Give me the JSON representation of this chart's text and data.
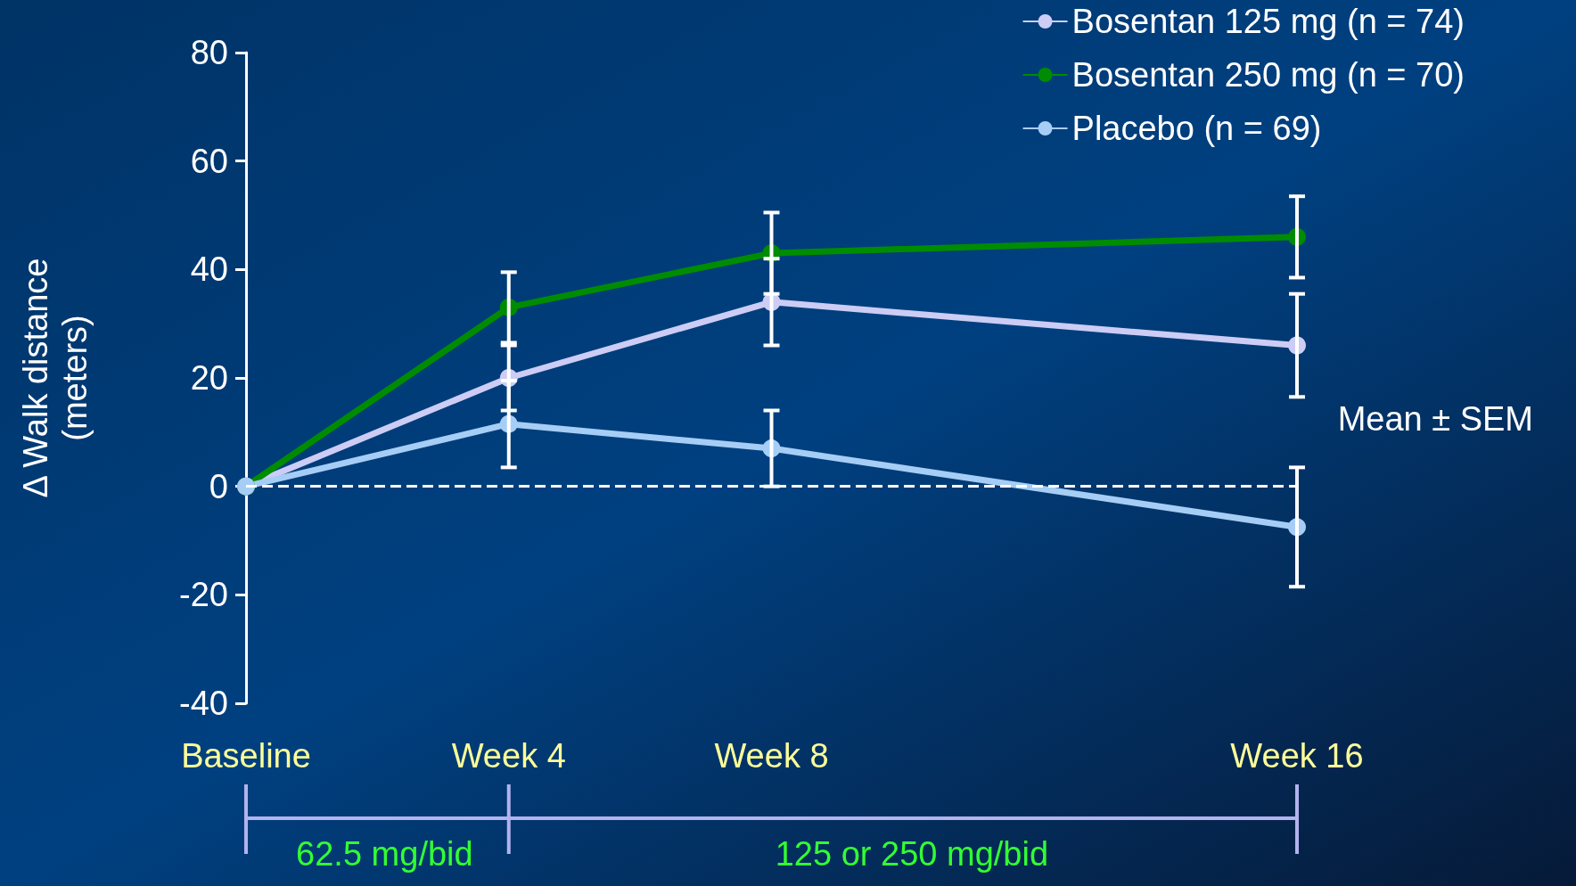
{
  "chart_data": {
    "type": "line",
    "ylabel": "Δ Walk distance\n(meters)",
    "categories": [
      "Baseline",
      "Week 4",
      "Week 8",
      null,
      "Week 16"
    ],
    "ylim": [
      -40,
      80
    ],
    "yticks": [
      -40,
      -20,
      0,
      20,
      40,
      60,
      80
    ],
    "series": [
      {
        "name": "Bosentan 125 mg (n = 74)",
        "color": "#ccccf5",
        "values": [
          0,
          20,
          34,
          null,
          26
        ],
        "errors": [
          null,
          6,
          8,
          null,
          9.5
        ]
      },
      {
        "name": "Bosentan 250 mg (n = 70)",
        "color": "#008c00",
        "values": [
          0,
          33,
          43,
          null,
          46
        ],
        "errors": [
          null,
          6.5,
          7.5,
          null,
          7.5
        ]
      },
      {
        "name": "Placebo (n = 69)",
        "color": "#a6cdf5",
        "values": [
          0,
          11.5,
          7,
          null,
          -7.5
        ],
        "errors": [
          null,
          8,
          7,
          null,
          11
        ]
      }
    ],
    "ref_lines": [
      {
        "axis": "y",
        "value": 0,
        "color": "#ffffff",
        "line_style": "dashed"
      }
    ],
    "annotations": [
      "Mean ± SEM",
      "62.5 mg/bid",
      "125 or 250 mg/bid"
    ],
    "marker": "circle",
    "line_style": "solid",
    "legend": "top right",
    "grid": false
  }
}
